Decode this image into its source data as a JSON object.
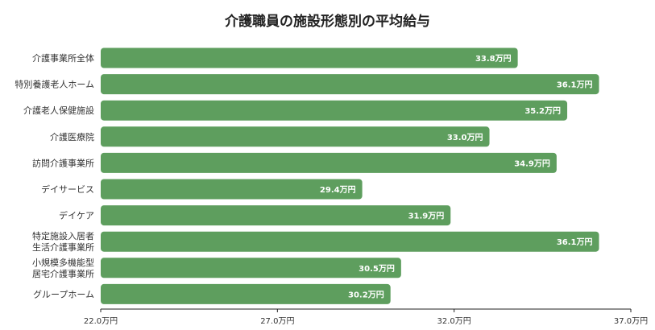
{
  "chart_data": {
    "type": "bar",
    "orientation": "horizontal",
    "title": "介護職員の施設形態別の平均給与",
    "xlabel": "",
    "ylabel": "",
    "xlim": [
      22.0,
      37.0
    ],
    "ticks": [
      "22.0万円",
      "27.0万円",
      "32.0万円",
      "37.0万円"
    ],
    "tick_values": [
      22.0,
      27.0,
      32.0,
      37.0
    ],
    "grid": false,
    "bar_color": "#5e9e5e",
    "categories": [
      [
        "介護事業所全体"
      ],
      [
        "特別養護老人ホーム"
      ],
      [
        "介護老人保健施設"
      ],
      [
        "介護医療院"
      ],
      [
        "訪問介護事業所"
      ],
      [
        "デイサービス"
      ],
      [
        "デイケア"
      ],
      [
        "特定施設入居者",
        "生活介護事業所"
      ],
      [
        "小規模多機能型",
        "居宅介護事業所"
      ],
      [
        "グループホーム"
      ]
    ],
    "values": [
      33.8,
      36.1,
      35.2,
      33.0,
      34.9,
      29.4,
      31.9,
      36.1,
      30.5,
      30.2
    ],
    "value_labels": [
      "33.8万円",
      "36.1万円",
      "35.2万円",
      "33.0万円",
      "34.9万円",
      "29.4万円",
      "31.9万円",
      "36.1万円",
      "30.5万円",
      "30.2万円"
    ]
  }
}
